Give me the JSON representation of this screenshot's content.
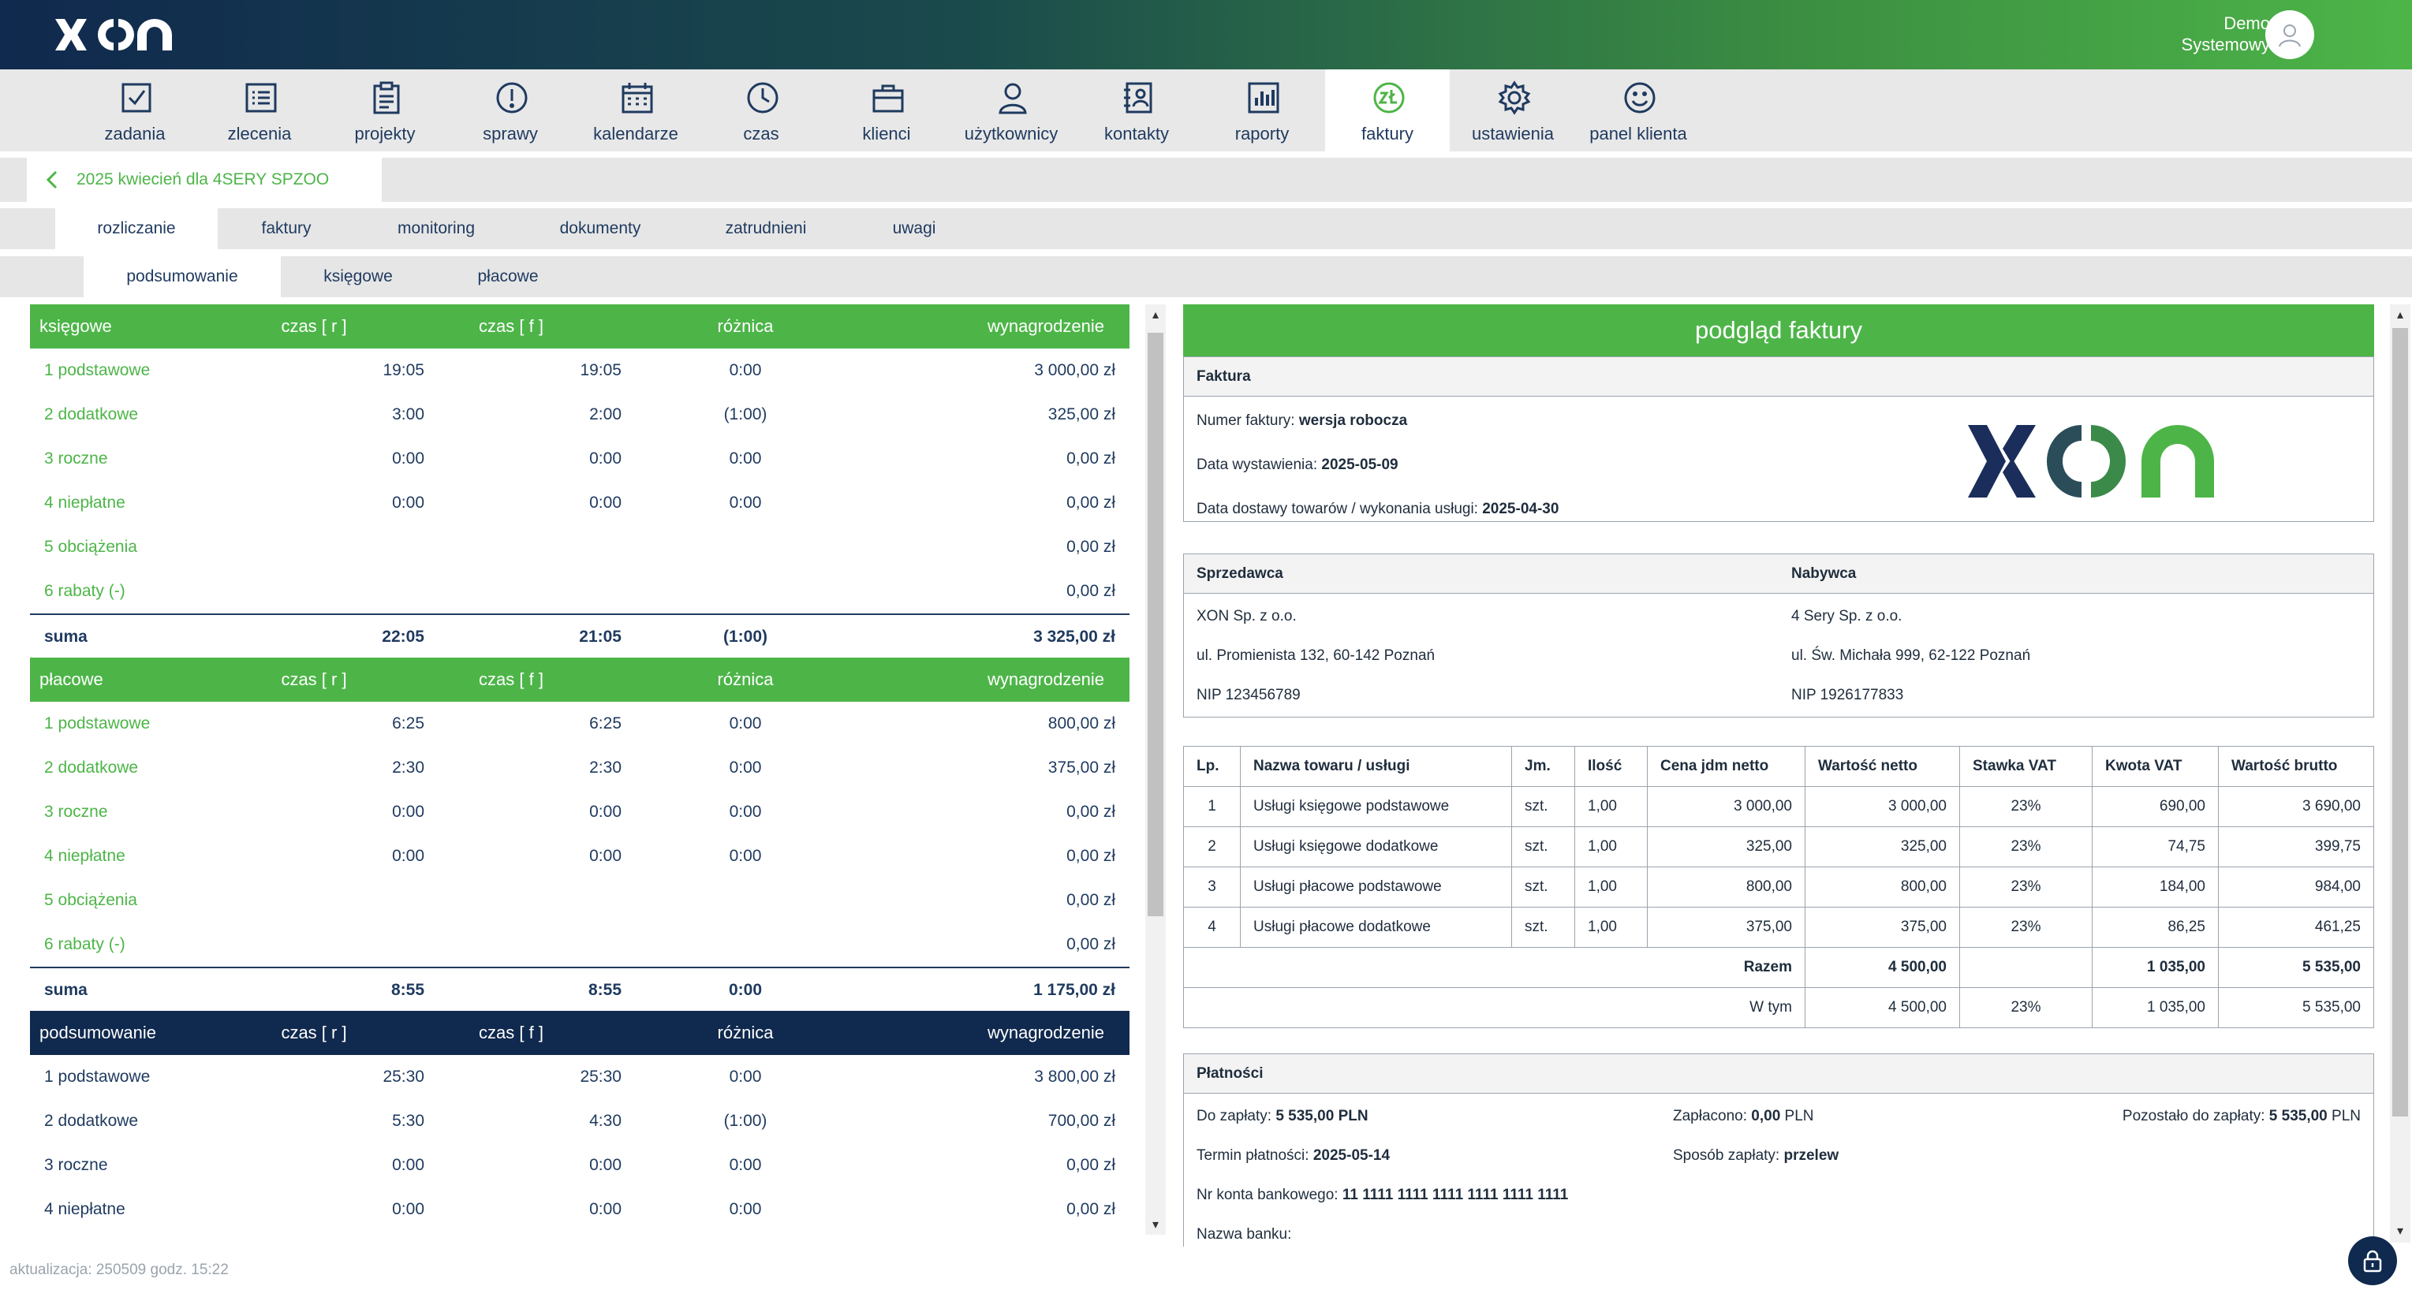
{
  "header": {
    "brand": "XON",
    "user_line1": "Demo",
    "user_line2": "Systemowy"
  },
  "nav": [
    {
      "label": "zadania",
      "icon": "checkbox-icon"
    },
    {
      "label": "zlecenia",
      "icon": "list-icon"
    },
    {
      "label": "projekty",
      "icon": "clipboard-icon"
    },
    {
      "label": "sprawy",
      "icon": "exclamation-icon"
    },
    {
      "label": "kalendarze",
      "icon": "calendar-icon"
    },
    {
      "label": "czas",
      "icon": "clock-icon"
    },
    {
      "label": "klienci",
      "icon": "briefcase-icon"
    },
    {
      "label": "użytkownicy",
      "icon": "user-icon"
    },
    {
      "label": "kontakty",
      "icon": "contact-book-icon"
    },
    {
      "label": "raporty",
      "icon": "chart-icon"
    },
    {
      "label": "faktury",
      "icon": "zloty-icon",
      "active": true
    },
    {
      "label": "ustawienia",
      "icon": "gear-icon"
    },
    {
      "label": "panel klienta",
      "icon": "smiley-icon"
    }
  ],
  "breadcrumb": "2025 kwiecień dla 4SERY SPZOO",
  "tabs": [
    "rozliczanie",
    "faktury",
    "monitoring",
    "dokumenty",
    "zatrudnieni",
    "uwagi"
  ],
  "subtabs": [
    "podsumowanie",
    "księgowe",
    "płacowe"
  ],
  "left": {
    "cols": [
      "czas [ r ]",
      "czas [ f ]",
      "różnica",
      "wynagrodzenie"
    ],
    "ksiegowe": {
      "title": "księgowe",
      "rows": [
        [
          "1 podstawowe",
          "19:05",
          "19:05",
          "0:00",
          "3 000,00 zł"
        ],
        [
          "2 dodatkowe",
          "3:00",
          "2:00",
          "(1:00)",
          "325,00 zł"
        ],
        [
          "3 roczne",
          "0:00",
          "0:00",
          "0:00",
          "0,00 zł"
        ],
        [
          "4 niepłatne",
          "0:00",
          "0:00",
          "0:00",
          "0,00 zł"
        ],
        [
          "5 obciążenia",
          "",
          "",
          "",
          "0,00 zł"
        ],
        [
          "6 rabaty (-)",
          "",
          "",
          "",
          "0,00 zł"
        ]
      ],
      "sum": [
        "suma",
        "22:05",
        "21:05",
        "(1:00)",
        "3 325,00 zł"
      ]
    },
    "placowe": {
      "title": "płacowe",
      "rows": [
        [
          "1 podstawowe",
          "6:25",
          "6:25",
          "0:00",
          "800,00 zł"
        ],
        [
          "2 dodatkowe",
          "2:30",
          "2:30",
          "0:00",
          "375,00 zł"
        ],
        [
          "3 roczne",
          "0:00",
          "0:00",
          "0:00",
          "0,00 zł"
        ],
        [
          "4 niepłatne",
          "0:00",
          "0:00",
          "0:00",
          "0,00 zł"
        ],
        [
          "5 obciążenia",
          "",
          "",
          "",
          "0,00 zł"
        ],
        [
          "6 rabaty (-)",
          "",
          "",
          "",
          "0,00 zł"
        ]
      ],
      "sum": [
        "suma",
        "8:55",
        "8:55",
        "0:00",
        "1 175,00 zł"
      ]
    },
    "podsumowanie": {
      "title": "podsumowanie",
      "rows": [
        [
          "1 podstawowe",
          "25:30",
          "25:30",
          "0:00",
          "3 800,00 zł"
        ],
        [
          "2 dodatkowe",
          "5:30",
          "4:30",
          "(1:00)",
          "700,00 zł"
        ],
        [
          "3 roczne",
          "0:00",
          "0:00",
          "0:00",
          "0,00 zł"
        ],
        [
          "4 niepłatne",
          "0:00",
          "0:00",
          "0:00",
          "0,00 zł"
        ]
      ]
    }
  },
  "invoice": {
    "title": "podgląd faktury",
    "faktura_head": "Faktura",
    "numer_label": "Numer faktury: ",
    "numer_value": "wersja robocza",
    "data_wyst_label": "Data wystawienia: ",
    "data_wyst_value": "2025-05-09",
    "data_dost_label": "Data dostawy towarów / wykonania usługi: ",
    "data_dost_value": "2025-04-30",
    "seller_head": "Sprzedawca",
    "buyer_head": "Nabywca",
    "seller": [
      "XON Sp. z o.o.",
      "ul. Promienista 132, 60-142 Poznań",
      "NIP 123456789"
    ],
    "buyer": [
      "4 Sery Sp. z o.o.",
      "ul. Św. Michała 999, 62-122 Poznań",
      "NIP 1926177833"
    ],
    "table_headers": [
      "Lp.",
      "Nazwa towaru / usługi",
      "Jm.",
      "Ilość",
      "Cena jdm netto",
      "Wartość netto",
      "Stawka VAT",
      "Kwota VAT",
      "Wartość brutto"
    ],
    "items": [
      [
        "1",
        "Usługi księgowe podstawowe",
        "szt.",
        "1,00",
        "3 000,00",
        "3 000,00",
        "23%",
        "690,00",
        "3 690,00"
      ],
      [
        "2",
        "Usługi księgowe dodatkowe",
        "szt.",
        "1,00",
        "325,00",
        "325,00",
        "23%",
        "74,75",
        "399,75"
      ],
      [
        "3",
        "Usługi płacowe podstawowe",
        "szt.",
        "1,00",
        "800,00",
        "800,00",
        "23%",
        "184,00",
        "984,00"
      ],
      [
        "4",
        "Usługi płacowe dodatkowe",
        "szt.",
        "1,00",
        "375,00",
        "375,00",
        "23%",
        "86,25",
        "461,25"
      ]
    ],
    "razem": [
      "Razem",
      "4 500,00",
      "1 035,00",
      "5 535,00"
    ],
    "wtym": [
      "W tym",
      "4 500,00",
      "23%",
      "1 035,00",
      "5 535,00"
    ],
    "payments_head": "Płatności",
    "do_zaplaty_label": "Do zapłaty: ",
    "do_zaplaty_value": "5 535,00 PLN",
    "zaplacono_label": "Zapłacono: ",
    "zaplacono_value": "0,00",
    "zaplacono_unit": " PLN",
    "pozostalo_label": "Pozostało do zapłaty: ",
    "pozostalo_value": "5 535,00",
    "pozostalo_unit": " PLN",
    "termin_label": "Termin płatności: ",
    "termin_value": "2025-05-14",
    "sposob_label": "Sposób zapłaty: ",
    "sposob_value": "przelew",
    "konto_label": "Nr konta bankowego: ",
    "konto_value": "11 1111 1111 1111 1111 1111 1111",
    "bank_label": "Nazwa banku:"
  },
  "status": "aktualizacja: 250509 godz. 15:22",
  "colors": {
    "green": "#4db548",
    "navy": "#10294e"
  }
}
